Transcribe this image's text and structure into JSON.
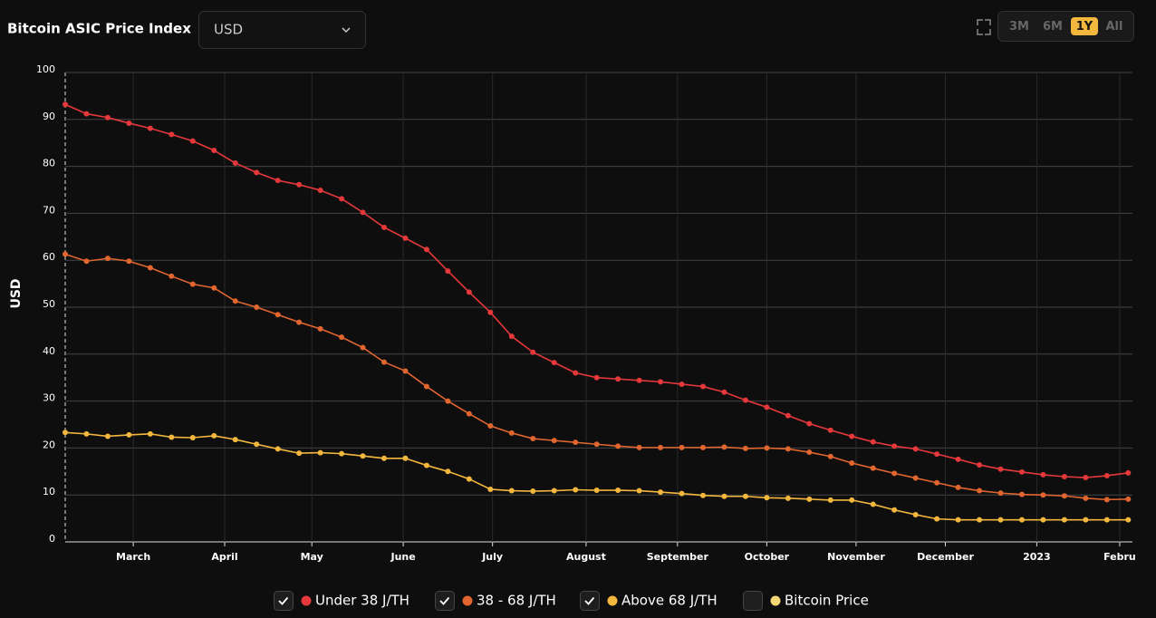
{
  "chart_data": {
    "type": "line",
    "title": "Bitcoin ASIC Price Index",
    "currency_select": "USD",
    "range_buttons": [
      "3M",
      "6M",
      "1Y",
      "All"
    ],
    "active_range": "1Y",
    "y_label": "USD",
    "x": [
      0,
      1,
      2,
      3,
      4,
      5,
      6,
      7,
      8,
      9,
      10,
      11,
      12,
      13,
      14,
      15,
      16,
      17,
      18,
      19,
      20,
      21,
      22,
      23,
      24,
      25,
      26,
      27,
      28,
      29,
      30,
      31,
      32,
      33,
      34,
      35,
      36,
      37,
      38,
      39,
      40,
      41,
      42,
      43,
      44,
      45,
      46,
      47,
      48,
      49,
      50
    ],
    "xlim": [
      0,
      50.2
    ],
    "xticks": [
      {
        "value": 3.2,
        "label": "March"
      },
      {
        "value": 7.5,
        "label": "April"
      },
      {
        "value": 11.6,
        "label": "May"
      },
      {
        "value": 15.9,
        "label": "June"
      },
      {
        "value": 20.1,
        "label": "July"
      },
      {
        "value": 24.5,
        "label": "August"
      },
      {
        "value": 28.8,
        "label": "September"
      },
      {
        "value": 33.0,
        "label": "October"
      },
      {
        "value": 37.2,
        "label": "November"
      },
      {
        "value": 41.4,
        "label": "December"
      },
      {
        "value": 45.7,
        "label": "2023"
      },
      {
        "value": 49.6,
        "label": "Febru"
      }
    ],
    "ylim": [
      0,
      100
    ],
    "yticks": [
      0,
      10,
      20,
      30,
      40,
      50,
      60,
      70,
      80,
      90,
      100
    ],
    "grid": true,
    "series": [
      {
        "name": "Under 38 J/TH",
        "color": "#e5383b",
        "visible": true,
        "values": [
          93.2,
          91.2,
          90.4,
          89.2,
          88.1,
          86.8,
          85.4,
          83.4,
          80.7,
          78.7,
          77.0,
          76.1,
          74.9,
          73.1,
          70.2,
          67.0,
          64.7,
          62.3,
          57.7,
          53.2,
          48.9,
          43.8,
          40.4,
          38.2,
          36.0,
          35.0,
          34.7,
          34.4,
          34.1,
          33.6,
          33.1,
          31.9,
          30.2,
          28.7,
          26.9,
          25.2,
          23.8,
          22.5,
          21.3,
          20.4,
          19.8,
          18.7,
          17.6,
          16.4,
          15.5,
          14.9,
          14.3,
          13.9,
          13.7,
          14.1,
          14.7
        ]
      },
      {
        "name": "38 - 68 J/TH",
        "color": "#e0652f",
        "visible": true,
        "values": [
          61.3,
          59.8,
          60.4,
          59.8,
          58.4,
          56.6,
          54.9,
          54.1,
          51.3,
          50.0,
          48.4,
          46.8,
          45.4,
          43.6,
          41.4,
          38.3,
          36.4,
          33.1,
          30.0,
          27.3,
          24.7,
          23.2,
          22.0,
          21.6,
          21.2,
          20.8,
          20.4,
          20.1,
          20.1,
          20.1,
          20.1,
          20.2,
          19.9,
          20.0,
          19.8,
          19.1,
          18.2,
          16.8,
          15.7,
          14.6,
          13.6,
          12.6,
          11.6,
          10.9,
          10.4,
          10.1,
          10.0,
          9.8,
          9.3,
          9.0,
          9.1
        ]
      },
      {
        "name": "Above 68 J/TH",
        "color": "#f3b73d",
        "visible": true,
        "values": [
          23.3,
          23.0,
          22.5,
          22.8,
          23.0,
          22.3,
          22.2,
          22.6,
          21.8,
          20.8,
          19.8,
          18.9,
          19.0,
          18.8,
          18.3,
          17.8,
          17.8,
          16.3,
          15.0,
          13.4,
          11.2,
          10.9,
          10.8,
          10.9,
          11.1,
          11.0,
          11.0,
          10.9,
          10.6,
          10.3,
          9.9,
          9.7,
          9.7,
          9.4,
          9.3,
          9.1,
          8.9,
          8.9,
          8.0,
          6.8,
          5.8,
          4.9,
          4.7,
          4.7,
          4.7,
          4.7,
          4.7,
          4.7,
          4.7,
          4.7,
          4.7
        ]
      },
      {
        "name": "Bitcoin Price",
        "color": "#f7d774",
        "visible": false
      }
    ]
  }
}
